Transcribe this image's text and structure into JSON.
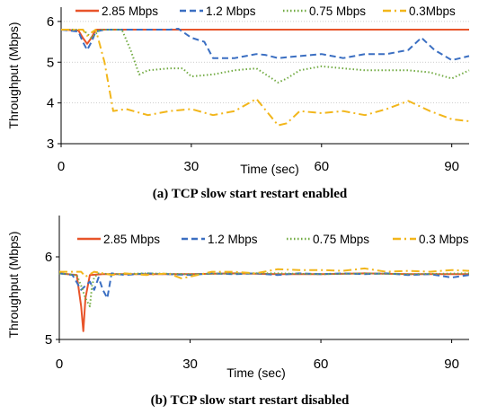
{
  "colors": {
    "2.85 Mbps": "#e8542a",
    "1.2 Mbps": "#3b6fc2",
    "0.75 Mbps": "#72ab43",
    "0.3 Mbps": "#f2b61b"
  },
  "chart_data": [
    {
      "type": "line",
      "caption": "(a) TCP slow start restart enabled",
      "xlabel": "Time (sec)",
      "ylabel": "Throughput (Mbps)",
      "xlim": [
        0,
        94
      ],
      "ylim": [
        3,
        6.35
      ],
      "xticks": [
        0,
        30,
        60,
        90
      ],
      "yticks": [
        3,
        4,
        5,
        6
      ],
      "grid": "horizontal",
      "legend_position": "top",
      "series": [
        {
          "name": "2.85 Mbps",
          "style": "solid",
          "x": [
            0,
            4,
            5,
            6,
            7,
            8,
            10,
            94
          ],
          "y": [
            5.8,
            5.78,
            5.6,
            5.45,
            5.6,
            5.8,
            5.8,
            5.8
          ]
        },
        {
          "name": "1.2 Mbps",
          "style": "dashed",
          "x": [
            0,
            4,
            5,
            6,
            7,
            8,
            10,
            15,
            20,
            25,
            27,
            30,
            33,
            35,
            40,
            45,
            47,
            50,
            55,
            60,
            65,
            70,
            75,
            80,
            83,
            86,
            90,
            94
          ],
          "y": [
            5.8,
            5.75,
            5.5,
            5.3,
            5.5,
            5.75,
            5.8,
            5.8,
            5.8,
            5.8,
            5.82,
            5.6,
            5.5,
            5.1,
            5.1,
            5.2,
            5.18,
            5.1,
            5.15,
            5.2,
            5.1,
            5.2,
            5.2,
            5.3,
            5.6,
            5.3,
            5.05,
            5.15
          ]
        },
        {
          "name": "0.75 Mbps",
          "style": "dotted",
          "x": [
            0,
            5,
            7,
            9,
            14,
            16,
            18,
            20,
            25,
            28,
            30,
            35,
            40,
            45,
            50,
            52,
            55,
            60,
            65,
            70,
            75,
            80,
            85,
            90,
            94
          ],
          "y": [
            5.8,
            5.8,
            5.6,
            5.8,
            5.8,
            5.3,
            4.7,
            4.8,
            4.85,
            4.85,
            4.65,
            4.7,
            4.8,
            4.85,
            4.5,
            4.6,
            4.8,
            4.9,
            4.85,
            4.8,
            4.8,
            4.8,
            4.75,
            4.6,
            4.8
          ]
        },
        {
          "name": "0.3Mbps",
          "style": "dashdot",
          "x": [
            0,
            5,
            6,
            8,
            10,
            12,
            15,
            20,
            25,
            30,
            35,
            40,
            45,
            50,
            52,
            55,
            60,
            65,
            70,
            75,
            80,
            85,
            90,
            94
          ],
          "y": [
            5.8,
            5.8,
            5.65,
            5.8,
            5.0,
            3.8,
            3.85,
            3.7,
            3.8,
            3.85,
            3.7,
            3.8,
            4.1,
            3.45,
            3.5,
            3.8,
            3.75,
            3.8,
            3.7,
            3.85,
            4.05,
            3.8,
            3.6,
            3.55
          ]
        }
      ]
    },
    {
      "type": "line",
      "caption": "(b) TCP slow start restart disabled",
      "xlabel": "Time (sec)",
      "ylabel": "Throughput (Mbps)",
      "xlim": [
        0,
        94
      ],
      "ylim": [
        5,
        6.5
      ],
      "xticks": [
        0,
        30,
        60,
        90
      ],
      "yticks": [
        5,
        6
      ],
      "grid": "none",
      "legend_position": "top",
      "series": [
        {
          "name": "2.85 Mbps",
          "style": "solid",
          "x": [
            0,
            4,
            5,
            5.5,
            6,
            7,
            10,
            20,
            30,
            40,
            50,
            60,
            70,
            80,
            94
          ],
          "y": [
            5.8,
            5.78,
            5.4,
            5.1,
            5.5,
            5.78,
            5.79,
            5.79,
            5.79,
            5.8,
            5.79,
            5.79,
            5.8,
            5.79,
            5.79
          ]
        },
        {
          "name": "1.2 Mbps",
          "style": "dashed",
          "x": [
            0,
            3,
            5,
            7,
            8,
            9,
            10,
            11,
            12,
            15,
            20,
            25,
            30,
            35,
            40,
            45,
            50,
            55,
            60,
            65,
            70,
            75,
            80,
            85,
            90,
            94
          ],
          "y": [
            5.8,
            5.78,
            5.6,
            5.7,
            5.6,
            5.75,
            5.6,
            5.5,
            5.8,
            5.78,
            5.8,
            5.79,
            5.78,
            5.8,
            5.79,
            5.8,
            5.78,
            5.8,
            5.79,
            5.8,
            5.79,
            5.8,
            5.78,
            5.79,
            5.75,
            5.78
          ]
        },
        {
          "name": "0.75 Mbps",
          "style": "dotted",
          "x": [
            0,
            4,
            5,
            6,
            7,
            7.5,
            8,
            9,
            12,
            20,
            30,
            40,
            50,
            60,
            70,
            80,
            94
          ],
          "y": [
            5.8,
            5.78,
            5.65,
            5.5,
            5.4,
            5.65,
            5.75,
            5.8,
            5.79,
            5.8,
            5.79,
            5.8,
            5.8,
            5.79,
            5.8,
            5.79,
            5.8
          ]
        },
        {
          "name": "0.3 Mbps",
          "style": "dashdot",
          "x": [
            0,
            5,
            6,
            8,
            12,
            15,
            20,
            25,
            28,
            30,
            35,
            40,
            45,
            50,
            55,
            60,
            65,
            70,
            75,
            80,
            85,
            90,
            94
          ],
          "y": [
            5.82,
            5.82,
            5.76,
            5.82,
            5.78,
            5.8,
            5.78,
            5.8,
            5.74,
            5.76,
            5.82,
            5.82,
            5.8,
            5.85,
            5.84,
            5.84,
            5.83,
            5.86,
            5.82,
            5.83,
            5.82,
            5.84,
            5.83
          ]
        }
      ]
    }
  ]
}
